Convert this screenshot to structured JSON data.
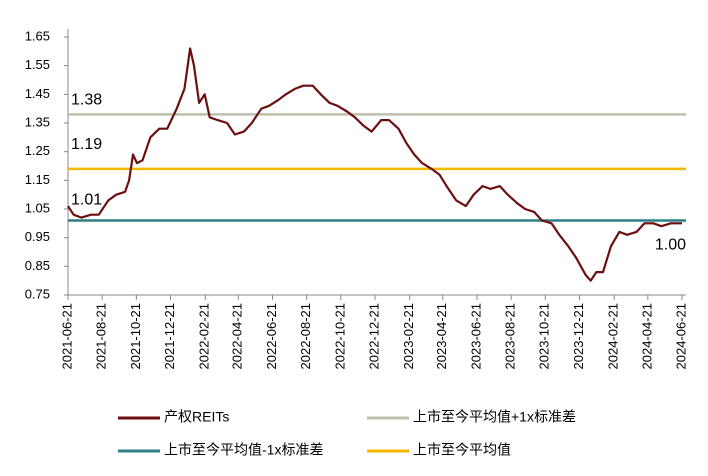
{
  "chart_data": {
    "type": "line",
    "x": [
      "2021-06-21",
      "2021-07-01",
      "2021-07-15",
      "2021-08-01",
      "2021-08-15",
      "2021-09-01",
      "2021-09-15",
      "2021-10-01",
      "2021-10-08",
      "2021-10-15",
      "2021-10-22",
      "2021-11-01",
      "2021-11-15",
      "2021-12-01",
      "2021-12-15",
      "2022-01-01",
      "2022-01-15",
      "2022-01-25",
      "2022-02-01",
      "2022-02-10",
      "2022-02-20",
      "2022-03-01",
      "2022-03-15",
      "2022-04-01",
      "2022-04-15",
      "2022-05-01",
      "2022-05-15",
      "2022-06-01",
      "2022-06-15",
      "2022-07-01",
      "2022-07-15",
      "2022-08-01",
      "2022-08-15",
      "2022-09-01",
      "2022-09-15",
      "2022-10-01",
      "2022-10-15",
      "2022-11-01",
      "2022-11-15",
      "2022-12-01",
      "2022-12-15",
      "2023-01-01",
      "2023-01-15",
      "2023-02-01",
      "2023-02-15",
      "2023-03-01",
      "2023-03-15",
      "2023-04-01",
      "2023-04-15",
      "2023-05-01",
      "2023-05-15",
      "2023-06-01",
      "2023-06-15",
      "2023-07-01",
      "2023-07-15",
      "2023-08-01",
      "2023-08-15",
      "2023-09-01",
      "2023-09-15",
      "2023-10-01",
      "2023-10-15",
      "2023-11-01",
      "2023-11-15",
      "2023-12-01",
      "2023-12-15",
      "2024-01-01",
      "2024-01-10",
      "2024-01-20",
      "2024-02-01",
      "2024-02-15",
      "2024-03-01",
      "2024-03-15",
      "2024-04-01",
      "2024-04-15",
      "2024-05-01",
      "2024-05-15",
      "2024-06-01",
      "2024-06-21"
    ],
    "series": [
      {
        "name": "产权REITs",
        "color": "#6b1010",
        "values": [
          1.06,
          1.03,
          1.02,
          1.03,
          1.03,
          1.08,
          1.1,
          1.11,
          1.15,
          1.24,
          1.21,
          1.22,
          1.3,
          1.33,
          1.33,
          1.4,
          1.47,
          1.61,
          1.55,
          1.42,
          1.45,
          1.37,
          1.36,
          1.35,
          1.31,
          1.32,
          1.35,
          1.4,
          1.41,
          1.43,
          1.45,
          1.47,
          1.48,
          1.48,
          1.45,
          1.42,
          1.41,
          1.39,
          1.37,
          1.34,
          1.32,
          1.36,
          1.36,
          1.33,
          1.28,
          1.24,
          1.21,
          1.19,
          1.17,
          1.12,
          1.08,
          1.06,
          1.1,
          1.13,
          1.12,
          1.13,
          1.1,
          1.07,
          1.05,
          1.04,
          1.01,
          1.0,
          0.96,
          0.92,
          0.88,
          0.82,
          0.8,
          0.83,
          0.83,
          0.92,
          0.97,
          0.96,
          0.97,
          1.0,
          1.0,
          0.99,
          1.0,
          1.0
        ],
        "last_label": "1.00"
      }
    ],
    "reference_lines": [
      {
        "name": "上市至今平均值+1x标准差",
        "value": 1.38,
        "color": "#bfbfae"
      },
      {
        "name": "上市至今平均值-1x标准差",
        "value": 1.01,
        "color": "#2f7f87"
      },
      {
        "name": "上市至今平均值",
        "value": 1.19,
        "color": "#f5b800"
      }
    ],
    "xlim": [
      "2021-06-21",
      "2024-06-21"
    ],
    "xticks": [
      "2021-06-21",
      "2021-08-21",
      "2021-10-21",
      "2021-12-21",
      "2022-02-21",
      "2022-04-21",
      "2022-06-21",
      "2022-08-21",
      "2022-10-21",
      "2022-12-21",
      "2023-02-21",
      "2023-04-21",
      "2023-06-21",
      "2023-08-21",
      "2023-10-21",
      "2023-12-21",
      "2024-02-21",
      "2024-04-21",
      "2024-06-21"
    ],
    "ylim": [
      0.75,
      1.65
    ],
    "yticks": [
      0.75,
      0.85,
      0.95,
      1.05,
      1.15,
      1.25,
      1.35,
      1.45,
      1.55,
      1.65
    ],
    "legend_order": [
      "chart_data.series.0",
      "chart_data.reference_lines.0",
      "chart_data.reference_lines.1",
      "chart_data.reference_lines.2"
    ]
  }
}
